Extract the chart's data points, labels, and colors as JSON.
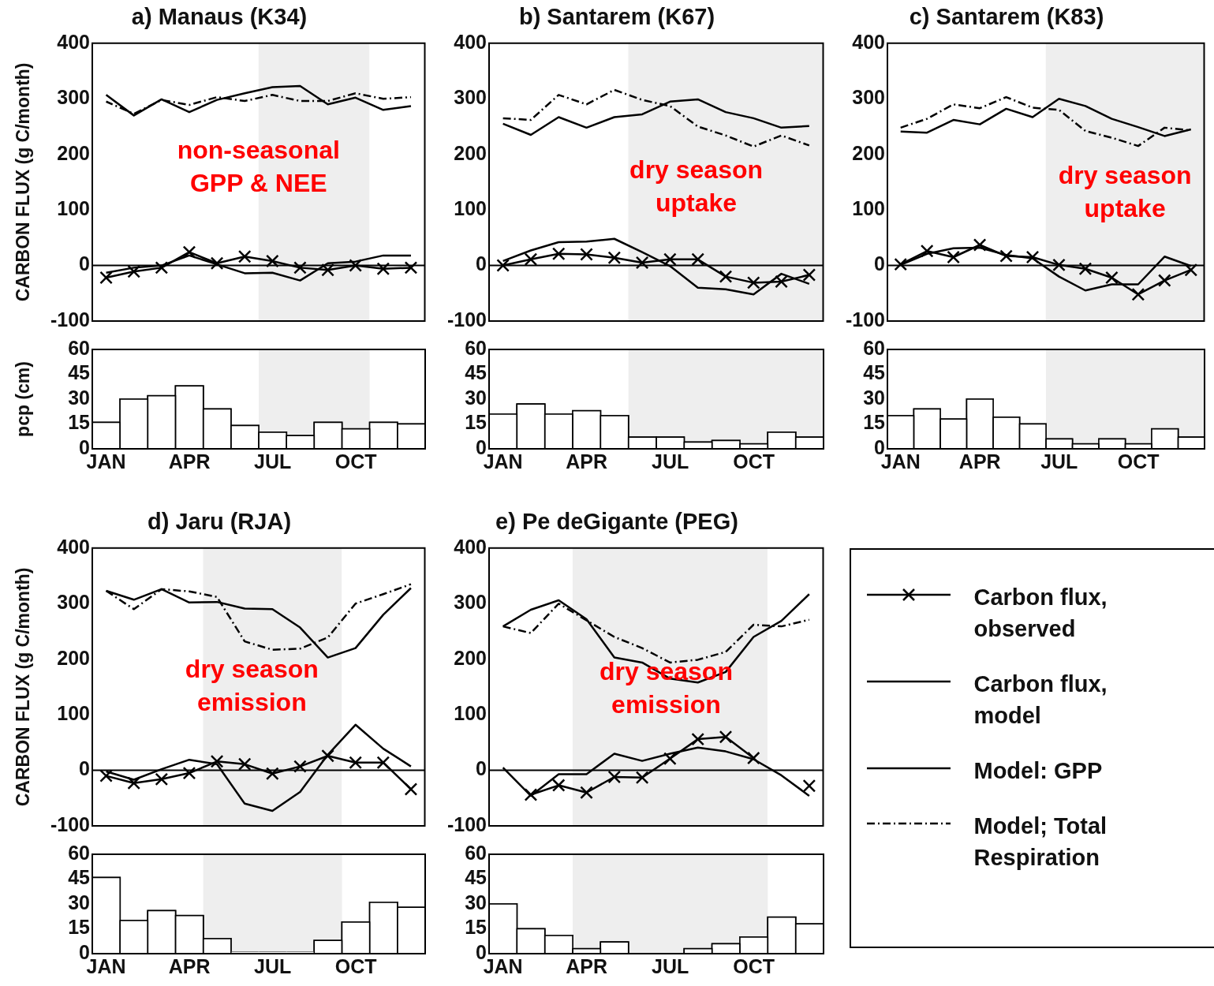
{
  "chart_data": [
    {
      "type": "line",
      "title": "a) Manaus (K34)",
      "ylabel": "CARBON FLUX (g C/month)",
      "ylim": [
        -100,
        400
      ],
      "yticks": [
        -100,
        0,
        100,
        200,
        300,
        400
      ],
      "tick_labels": "y",
      "ref_lines": [
        {
          "axis": "y",
          "value": 0,
          "color": "#000000"
        }
      ],
      "annotations": [
        "non-seasonal GPP & NEE"
      ],
      "series": [
        {
          "color": "#000000",
          "marker": "cross",
          "values": [
            -22,
            -11,
            -4,
            24,
            4,
            16,
            8,
            -4,
            -8,
            0,
            -6,
            -4
          ]
        },
        {
          "color": "#000000",
          "values": [
            -13,
            -4,
            0,
            18,
            2,
            -14,
            -13,
            -27,
            4,
            7,
            18,
            18
          ]
        },
        {
          "color": "#000000",
          "values": [
            307,
            270,
            299,
            276,
            298,
            310,
            321,
            323,
            290,
            302,
            280,
            287
          ]
        },
        {
          "color": "#000000",
          "line_style": "dashdot",
          "values": [
            295,
            273,
            298,
            289,
            303,
            296,
            307,
            296,
            296,
            310,
            300,
            303
          ]
        }
      ]
    },
    {
      "type": "bar",
      "ylabel": "pcp (cm)",
      "categories": [
        "JAN",
        null,
        null,
        "APR",
        null,
        null,
        "JUL",
        null,
        null,
        "OCT",
        null,
        null
      ],
      "ylim": [
        0,
        60
      ],
      "yticks": [
        0,
        15,
        30,
        45,
        60
      ],
      "color": "#ffffff",
      "values": [
        16,
        30,
        32,
        38,
        24,
        14,
        10,
        8,
        16,
        12,
        16,
        15
      ]
    },
    {
      "type": "line",
      "title": "b) Santarem (K67)",
      "ylim": [
        -100,
        400
      ],
      "yticks": [
        -100,
        0,
        100,
        200,
        300,
        400
      ],
      "tick_labels": "y",
      "ref_lines": [
        {
          "axis": "y",
          "value": 0,
          "color": "#000000"
        }
      ],
      "annotations": [
        "dry season uptake"
      ],
      "series": [
        {
          "color": "#000000",
          "marker": "cross",
          "values": [
            0,
            11,
            21,
            20,
            14,
            5,
            11,
            11,
            -20,
            -31,
            -29,
            -17
          ]
        },
        {
          "color": "#000000",
          "values": [
            8,
            27,
            42,
            43,
            48,
            24,
            -1,
            -40,
            -43,
            -52,
            -15,
            -33
          ]
        },
        {
          "color": "#000000",
          "values": [
            255,
            235,
            267,
            248,
            267,
            272,
            295,
            299,
            276,
            265,
            248,
            251
          ]
        },
        {
          "color": "#000000",
          "line_style": "dashdot",
          "values": [
            265,
            262,
            307,
            290,
            316,
            298,
            287,
            250,
            234,
            214,
            234,
            216
          ]
        }
      ]
    },
    {
      "type": "bar",
      "categories": [
        "JAN",
        null,
        null,
        "APR",
        null,
        null,
        "JUL",
        null,
        null,
        "OCT",
        null,
        null
      ],
      "ylim": [
        0,
        60
      ],
      "yticks": [
        0,
        15,
        30,
        45,
        60
      ],
      "color": "#ffffff",
      "values": [
        21,
        27,
        21,
        23,
        20,
        7,
        7,
        4,
        5,
        3,
        10,
        7
      ]
    },
    {
      "type": "line",
      "title": "c) Santarem (K83)",
      "ylim": [
        -100,
        400
      ],
      "yticks": [
        -100,
        0,
        100,
        200,
        300,
        400
      ],
      "tick_labels": "y",
      "ref_lines": [
        {
          "axis": "y",
          "value": 0,
          "color": "#000000"
        }
      ],
      "annotations": [
        "dry season uptake"
      ],
      "series": [
        {
          "color": "#000000",
          "marker": "cross",
          "values": [
            2,
            26,
            15,
            37,
            17,
            15,
            1,
            -6,
            -22,
            -52,
            -27,
            -8
          ]
        },
        {
          "color": "#000000",
          "values": [
            1,
            21,
            31,
            32,
            19,
            13,
            -20,
            -45,
            -34,
            -34,
            16,
            -1
          ]
        },
        {
          "color": "#000000",
          "values": [
            241,
            239,
            262,
            254,
            282,
            267,
            300,
            287,
            264,
            249,
            233,
            245
          ]
        },
        {
          "color": "#000000",
          "line_style": "dashdot",
          "values": [
            248,
            264,
            290,
            283,
            303,
            284,
            280,
            242,
            230,
            215,
            248,
            243
          ]
        }
      ]
    },
    {
      "type": "bar",
      "categories": [
        "JAN",
        null,
        null,
        "APR",
        null,
        null,
        "JUL",
        null,
        null,
        "OCT",
        null,
        null
      ],
      "ylim": [
        0,
        60
      ],
      "yticks": [
        0,
        15,
        30,
        45,
        60
      ],
      "color": "#ffffff",
      "values": [
        20,
        24,
        18,
        30,
        19,
        15,
        6,
        3,
        6,
        3,
        12,
        7
      ]
    },
    {
      "type": "line",
      "title": "d) Jaru (RJA)",
      "ylabel": "CARBON FLUX (g C/month)",
      "ylim": [
        -100,
        400
      ],
      "yticks": [
        -100,
        0,
        100,
        200,
        300,
        400
      ],
      "tick_labels": "y",
      "ref_lines": [
        {
          "axis": "y",
          "value": 0,
          "color": "#000000"
        }
      ],
      "annotations": [
        "dry season emission"
      ],
      "series": [
        {
          "color": "#000000",
          "marker": "cross",
          "values": [
            -10,
            -23,
            -16,
            -5,
            16,
            11,
            -6,
            7,
            26,
            14,
            14,
            -34
          ]
        },
        {
          "color": "#000000",
          "values": [
            -2,
            -17,
            2,
            19,
            11,
            -60,
            -73,
            -39,
            28,
            82,
            39,
            7
          ]
        },
        {
          "color": "#000000",
          "values": [
            323,
            307,
            326,
            302,
            303,
            291,
            290,
            257,
            203,
            220,
            280,
            328
          ]
        },
        {
          "color": "#000000",
          "line_style": "dashdot",
          "values": [
            323,
            290,
            326,
            322,
            312,
            232,
            217,
            219,
            239,
            300,
            317,
            335
          ]
        }
      ]
    },
    {
      "type": "bar",
      "categories": [
        "JAN",
        null,
        null,
        "APR",
        null,
        null,
        "JUL",
        null,
        null,
        "OCT",
        null,
        null
      ],
      "ylim": [
        0,
        60
      ],
      "yticks": [
        0,
        15,
        30,
        45,
        60
      ],
      "color": "#ffffff",
      "values": [
        46,
        20,
        26,
        23,
        9,
        1,
        1,
        1,
        8,
        19,
        31,
        28
      ]
    },
    {
      "type": "line",
      "title": "e) Pe deGigante (PEG)",
      "legend": "right",
      "ylim": [
        -100,
        400
      ],
      "yticks": [
        -100,
        0,
        100,
        200,
        300,
        400
      ],
      "tick_labels": "y",
      "ref_lines": [
        {
          "axis": "y",
          "value": 0,
          "color": "#000000"
        }
      ],
      "annotations": [
        "dry season emission"
      ],
      "series": [
        {
          "name": "Carbon flux, observed",
          "color": "#000000",
          "marker": "cross",
          "values": [
            null,
            -44,
            -27,
            -40,
            -12,
            -13,
            21,
            56,
            60,
            22,
            null,
            -28
          ]
        },
        {
          "name": "Carbon flux, model",
          "color": "#000000",
          "values": [
            5,
            -46,
            -7,
            -7,
            30,
            17,
            30,
            41,
            34,
            20,
            -9,
            -46
          ]
        },
        {
          "name": "Model: GPP",
          "color": "#000000",
          "values": [
            259,
            289,
            306,
            272,
            203,
            194,
            165,
            158,
            177,
            240,
            269,
            317
          ]
        },
        {
          "name": "Model; Total Respiration",
          "color": "#000000",
          "line_style": "dashdot",
          "values": [
            259,
            247,
            300,
            270,
            240,
            220,
            194,
            199,
            213,
            262,
            259,
            271
          ]
        }
      ]
    },
    {
      "type": "bar",
      "categories": [
        "JAN",
        null,
        null,
        "APR",
        null,
        null,
        "JUL",
        null,
        null,
        "OCT",
        null,
        null
      ],
      "ylim": [
        0,
        60
      ],
      "yticks": [
        0,
        15,
        30,
        45,
        60
      ],
      "color": "#ffffff",
      "values": [
        30,
        15,
        11,
        3,
        7,
        0,
        0,
        3,
        6,
        10,
        22,
        18
      ]
    }
  ]
}
